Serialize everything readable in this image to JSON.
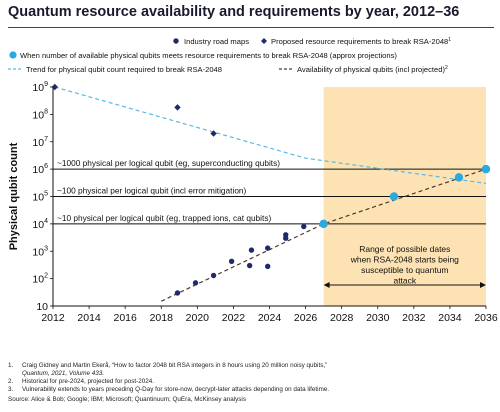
{
  "title": "Quantum resource availability and requirements by year, 2012–36",
  "chart_data": {
    "type": "scatter",
    "title": "Quantum resource availability and requirements by year, 2012–36",
    "xlabel": "",
    "ylabel": "Physical qubit count",
    "xlim": [
      2012,
      2036
    ],
    "ylim": [
      10,
      1000000000
    ],
    "y_scale": "log",
    "x_ticks": [
      "2012",
      "2014",
      "2016",
      "2018",
      "2020",
      "2022",
      "2024",
      "2026",
      "2028",
      "2030",
      "2032",
      "2034",
      "2036"
    ],
    "y_tick_labels": [
      {
        "base": "10",
        "exp": ""
      },
      {
        "base": "10",
        "exp": "2"
      },
      {
        "base": "10",
        "exp": "3"
      },
      {
        "base": "10",
        "exp": "4"
      },
      {
        "base": "10",
        "exp": "5"
      },
      {
        "base": "10",
        "exp": "6"
      },
      {
        "base": "10",
        "exp": "7"
      },
      {
        "base": "10",
        "exp": "8"
      },
      {
        "base": "10",
        "exp": "9"
      }
    ],
    "legend": {
      "industry": "Industry road maps",
      "proposed": "Proposed resource requirements to break RSA-2048",
      "proposed_sup": "1",
      "meets": "When number of available physical qubits meets resource requirements to break RSA-2048 (approx projections)",
      "trend": "Trend for physical qubit count required to break RSA-2048",
      "availability": "Availability of physical qubits (incl projected)",
      "availability_sup": "2"
    },
    "series": [
      {
        "name": "Industry road maps",
        "points": [
          [
            2018.9,
            30
          ],
          [
            2019.9,
            70
          ],
          [
            2020.9,
            130
          ],
          [
            2021.9,
            430
          ],
          [
            2022.9,
            300
          ],
          [
            2023.0,
            1100
          ],
          [
            2023.9,
            280
          ],
          [
            2023.9,
            1300
          ],
          [
            2024.9,
            3000
          ],
          [
            2024.9,
            4000
          ],
          [
            2025.9,
            8000
          ]
        ]
      },
      {
        "name": "Proposed resource requirements to break RSA-2048",
        "points": [
          [
            2012.1,
            1000000000
          ],
          [
            2018.9,
            180000000
          ],
          [
            2020.9,
            20000000
          ]
        ]
      },
      {
        "name": "When number of available physical qubits meets resource requirements to break RSA-2048 (approx projections)",
        "points": [
          [
            2027.0,
            10000
          ],
          [
            2030.9,
            100000
          ],
          [
            2034.5,
            500000
          ],
          [
            2036.0,
            1000000
          ]
        ]
      },
      {
        "name": "Trend for physical qubit count required to break RSA-2048",
        "points": [
          [
            2012.1,
            1000000000
          ],
          [
            2026.0,
            2500000
          ],
          [
            2036.0,
            300000
          ]
        ]
      },
      {
        "name": "Availability of physical qubits (incl projected)",
        "points": [
          [
            2018.0,
            15
          ],
          [
            2027.0,
            10000
          ],
          [
            2036.0,
            1000000
          ]
        ]
      }
    ],
    "reference_lines": [
      {
        "y": 1000000,
        "label": "~1000 physical per logical qubit (eg, superconducting qubits)"
      },
      {
        "y": 100000,
        "label": "~100 physical per logical qubit (incl error mitigation)"
      },
      {
        "y": 10000,
        "label": "~10 physical per logical qubit (eg, trapped ions, cat qubits)"
      }
    ],
    "shaded_range": {
      "x": [
        2027.0,
        2036.0
      ],
      "label": "Range of possible dates when RSA-2048 starts being susceptible to quantum attack",
      "color": "#fde3b3"
    },
    "colors": {
      "industry": "#1f2a6b",
      "proposed": "#1f2a6b",
      "meets": "#29a9e0",
      "trend": "#5bb7e6",
      "availability": "#4a3a2a",
      "shade": "#fde3b3"
    }
  },
  "footnotes": [
    {
      "num": "1.",
      "lines": [
        "Craig Gidney and Martin Ekerå, “How to factor 2048 bit RSA integers in 8 hours using 20 million noisy qubits,”",
        "Quantum, 2021, Volume 433."
      ]
    },
    {
      "num": "2.",
      "lines": [
        "Historical for pre-2024, projected for post-2024."
      ]
    },
    {
      "num": "3.",
      "lines": [
        "Vulnerability extends to years preceding Q-Day for store-now, decrypt-later attacks depending on data lifetime."
      ]
    }
  ],
  "source": "Source: Alice & Bob; Google; IBM; Microsoft; Quantinuum; QuEra, McKinsey analysis"
}
